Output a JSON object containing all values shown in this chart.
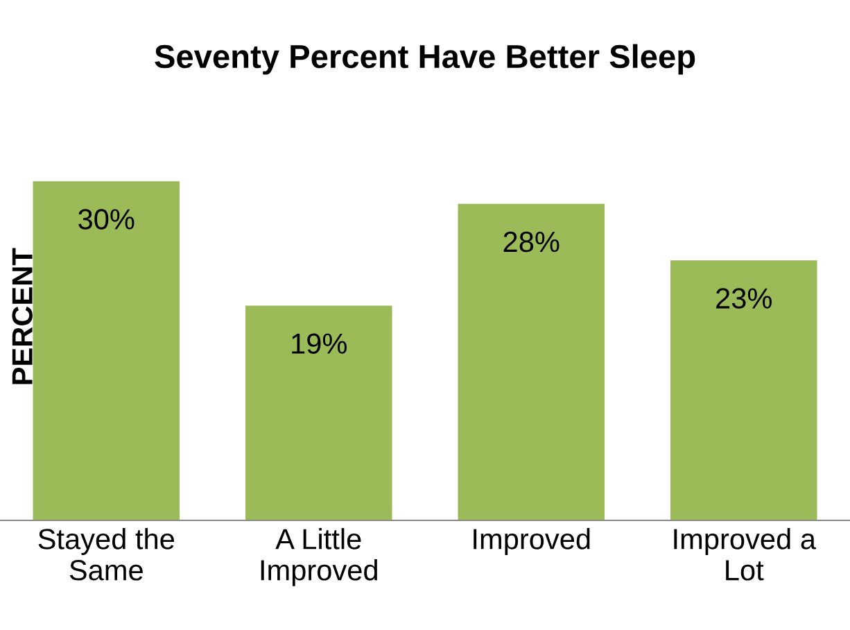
{
  "chart_data": {
    "type": "bar",
    "title": "Seventy Percent Have Better Sleep",
    "ylabel": "PERCENT",
    "categories": [
      "Stayed the\nSame",
      "A Little\nImproved",
      "Improved",
      "Improved a\nLot"
    ],
    "values": [
      30,
      19,
      28,
      23
    ],
    "value_labels": [
      "30%",
      "19%",
      "28%",
      "23%"
    ],
    "color": "#9bbb59",
    "grid": false,
    "legend": false
  }
}
